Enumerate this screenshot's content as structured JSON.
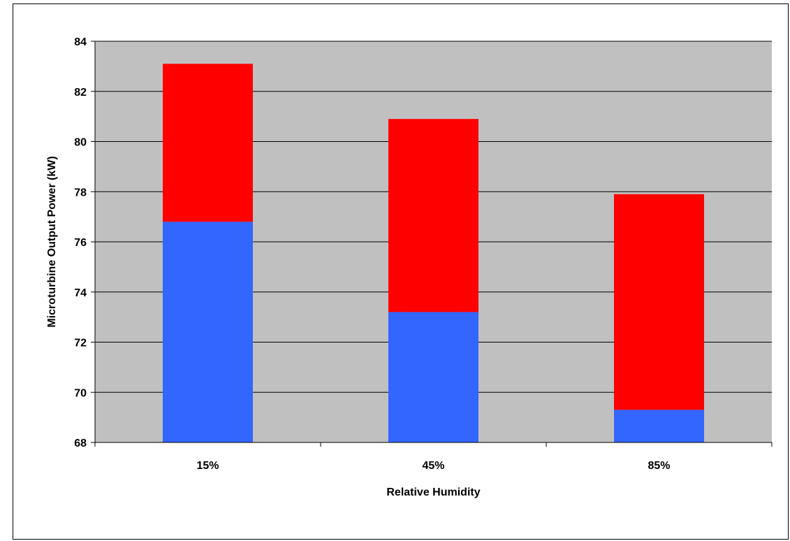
{
  "chart_data": {
    "type": "bar",
    "stacked": true,
    "baseline": 68,
    "title": "",
    "xlabel": "Relative Humidity",
    "ylabel": "Microturbine Output Power (kW)",
    "ylim": [
      68,
      84
    ],
    "yticks": [
      68,
      70,
      72,
      74,
      76,
      78,
      80,
      82,
      84
    ],
    "grid": true,
    "legend": "none",
    "categories": [
      "15%",
      "45%",
      "85%"
    ],
    "series": [
      {
        "color": "#3366ff",
        "totals": [
          76.8,
          73.2,
          69.3
        ]
      },
      {
        "color": "#ff0000",
        "totals": [
          83.1,
          80.9,
          77.9
        ]
      }
    ],
    "colors": {
      "plot_background": "#c0c0c0",
      "gridline": "#000000",
      "axis": "#000000"
    }
  }
}
